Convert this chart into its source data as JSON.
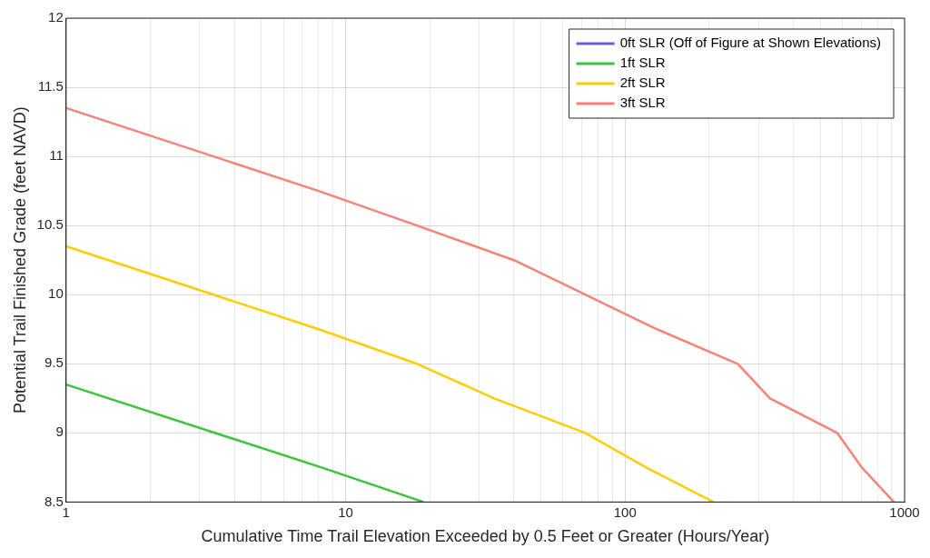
{
  "chart_data": {
    "type": "line",
    "xlabel": "Cumulative Time Trail Elevation Exceeded by 0.5 Feet or Greater (Hours/Year)",
    "ylabel": "Potential Trail Finished Grade (feet NAVD)",
    "log": "x",
    "grid": true,
    "legend": "top right",
    "line_style": "solid",
    "marker": "none",
    "xlim": [
      1,
      1000
    ],
    "ylim": [
      8.5,
      12
    ],
    "xticks": [
      1,
      {
        "value": 2,
        "label": null
      },
      {
        "value": 3,
        "label": null
      },
      {
        "value": 4,
        "label": null
      },
      {
        "value": 5,
        "label": null
      },
      {
        "value": 6,
        "label": null
      },
      {
        "value": 7,
        "label": null
      },
      {
        "value": 8,
        "label": null
      },
      {
        "value": 9,
        "label": null
      },
      10,
      {
        "value": 20,
        "label": null
      },
      {
        "value": 30,
        "label": null
      },
      {
        "value": 40,
        "label": null
      },
      {
        "value": 50,
        "label": null
      },
      {
        "value": 60,
        "label": null
      },
      {
        "value": 70,
        "label": null
      },
      {
        "value": 80,
        "label": null
      },
      {
        "value": 90,
        "label": null
      },
      100,
      {
        "value": 200,
        "label": null
      },
      {
        "value": 300,
        "label": null
      },
      {
        "value": 400,
        "label": null
      },
      {
        "value": 500,
        "label": null
      },
      {
        "value": 600,
        "label": null
      },
      {
        "value": 700,
        "label": null
      },
      {
        "value": 800,
        "label": null
      },
      {
        "value": 900,
        "label": null
      },
      1000
    ],
    "yticks": [
      8.5,
      9,
      9.5,
      10,
      10.5,
      11,
      11.5,
      12
    ],
    "series": [
      {
        "name": "0ft SLR (Off of Figure at Shown Elevations)",
        "color": "#6a5fd6"
      },
      {
        "name": "1ft SLR",
        "color": "#3cc43c",
        "x": [
          1,
          8.2,
          19
        ],
        "values": [
          9.35,
          8.75,
          8.5
        ]
      },
      {
        "name": "2ft SLR",
        "color": "#ffcc00",
        "x": [
          1,
          8,
          18,
          34,
          72,
          119,
          207
        ],
        "values": [
          10.35,
          9.75,
          9.5,
          9.25,
          9,
          8.75,
          8.5
        ]
      },
      {
        "name": "3ft SLR",
        "color": "#f4837a",
        "x": [
          1,
          8,
          18,
          40,
          72,
          130,
          253,
          330,
          574,
          703,
          916
        ],
        "values": [
          11.35,
          10.75,
          10.5,
          10.25,
          10,
          9.75,
          9.5,
          9.25,
          9,
          8.75,
          8.5
        ]
      }
    ]
  }
}
